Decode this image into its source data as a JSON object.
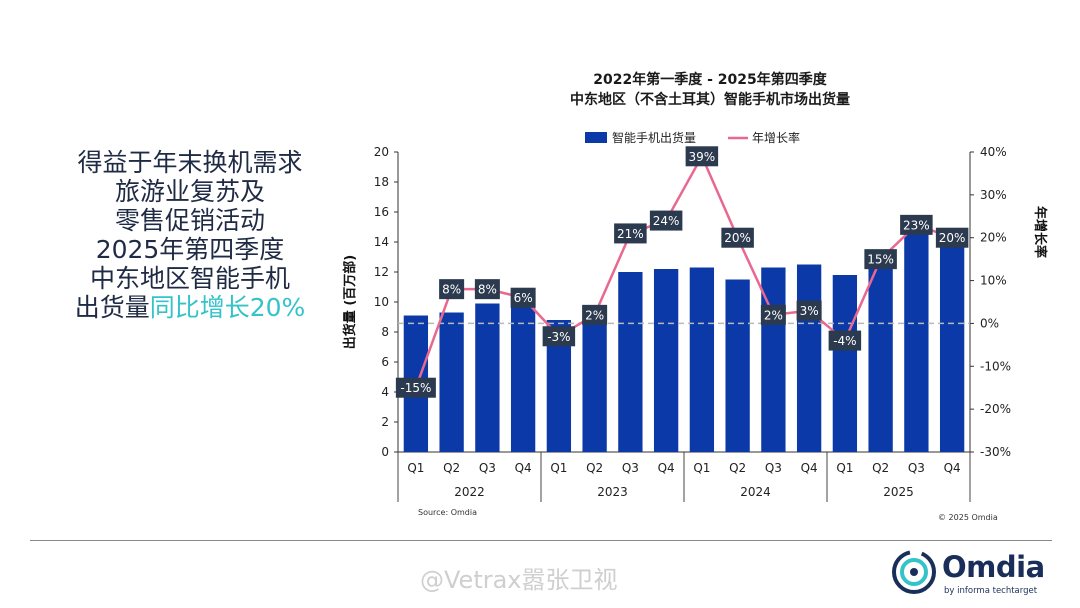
{
  "headline": {
    "lines": [
      "得益于年末换机需求",
      "旅游业复苏及",
      "零售促销活动",
      "2025年第四季度",
      "中东地区智能手机"
    ],
    "last_line_prefix": "出货量",
    "last_line_accent": "同比增长20%"
  },
  "chart_title": {
    "line1": "2022年第一季度 - 2025年第四季度",
    "line2": "中东地区（不含土耳其）智能手机市场出货量"
  },
  "source": "Source: Omdia",
  "copyright": "© 2025 Omdia",
  "watermark": "@Vetrax嚣张卫视",
  "logo": {
    "word": "Omdia",
    "sub": "by informa techtarget"
  },
  "colors": {
    "bar": "#0b3aa8",
    "line": "#e8688f",
    "label_bg": "#2b3a4e",
    "accent": "#34c3c9"
  },
  "chart_data": {
    "type": "bar",
    "categories": [
      "Q1",
      "Q2",
      "Q3",
      "Q4",
      "Q1",
      "Q2",
      "Q3",
      "Q4",
      "Q1",
      "Q2",
      "Q3",
      "Q4",
      "Q1",
      "Q2",
      "Q3",
      "Q4"
    ],
    "years": [
      "2022",
      "2023",
      "2024",
      "2025"
    ],
    "series": [
      {
        "name": "智能手机出货量",
        "type": "bar",
        "axis": "left",
        "values": [
          9.1,
          9.3,
          9.9,
          9.8,
          8.8,
          9.5,
          12.0,
          12.2,
          12.3,
          11.5,
          12.3,
          12.5,
          11.8,
          13.1,
          15.1,
          14.9
        ]
      },
      {
        "name": "年增长率",
        "type": "line",
        "axis": "right",
        "values": [
          -15,
          8,
          8,
          6,
          -3,
          2,
          21,
          24,
          39,
          20,
          2,
          3,
          -4,
          15,
          23,
          20
        ],
        "labels": [
          "-15%",
          "8%",
          "8%",
          "6%",
          "-3%",
          "2%",
          "21%",
          "24%",
          "39%",
          "20%",
          "2%",
          "3%",
          "-4%",
          "15%",
          "23%",
          "20%"
        ]
      }
    ],
    "ylabel": "出货量 (百万部)",
    "y2label": "年增长率",
    "ylim": [
      0,
      20
    ],
    "y2lim": [
      -30,
      40
    ],
    "yticks": [
      "0",
      "2",
      "4",
      "6",
      "8",
      "10",
      "12",
      "14",
      "16",
      "18",
      "20"
    ],
    "y2ticks": [
      "-30%",
      "-20%",
      "-10%",
      "0%",
      "10%",
      "20%",
      "30%",
      "40%"
    ],
    "legend": "top-center",
    "grid": false
  }
}
